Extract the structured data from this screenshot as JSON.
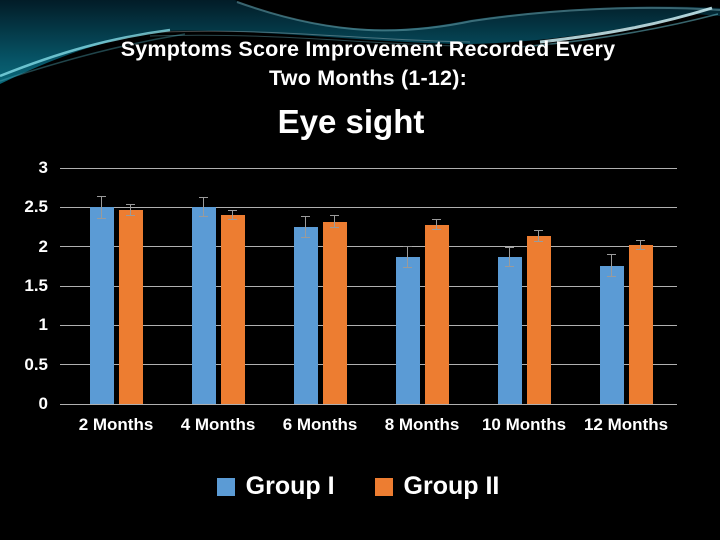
{
  "slide": {
    "title_line1": "Symptoms Score Improvement Recorded Every",
    "title_line2": "Two Months (1-12):"
  },
  "chart_data": {
    "type": "bar",
    "title": "Eye sight",
    "categories": [
      "2 Months",
      "4 Months",
      "6 Months",
      "8 Months",
      "10 Months",
      "12 Months"
    ],
    "series": [
      {
        "name": "Group I",
        "color": "#5B9BD5",
        "values": [
          2.5,
          2.5,
          2.25,
          1.87,
          1.87,
          1.76
        ],
        "errors": [
          0.14,
          0.12,
          0.13,
          0.13,
          0.12,
          0.14
        ]
      },
      {
        "name": "Group II",
        "color": "#ED7D31",
        "values": [
          2.47,
          2.4,
          2.32,
          2.28,
          2.13,
          2.02
        ],
        "errors": [
          0.07,
          0.06,
          0.07,
          0.06,
          0.07,
          0.06
        ]
      }
    ],
    "ylim": [
      0,
      3
    ],
    "ytick_step": 0.5,
    "ytick_labels": [
      "0",
      "0.5",
      "1",
      "1.5",
      "2",
      "2.5",
      "3"
    ],
    "grid": true,
    "legend_position": "bottom",
    "error_bars": true
  },
  "colors": {
    "background": "#000000",
    "banner_teal_dark": "#021c27",
    "banner_teal_mid": "#075668",
    "banner_teal_bright": "#0c7d8d",
    "bar_blue": "#5B9BD5",
    "bar_orange": "#ED7D31",
    "gridline": "#cfcfcf",
    "text": "#ffffff",
    "error_bar": "#9b9b9b"
  }
}
